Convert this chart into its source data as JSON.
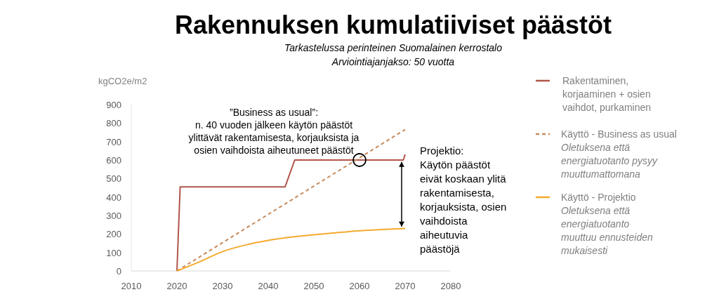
{
  "chart_data": {
    "type": "line",
    "title": "Rakennuksen kumulatiiviset päästöt",
    "subtitle": "Tarkastelussa perinteinen Suomalainen kerrostalo\nArviointiajanjakso: 50 vuotta",
    "ylabel": "kgCO2e/m2",
    "xlim": [
      2010,
      2080
    ],
    "xticks": [
      2010,
      2020,
      2030,
      2040,
      2050,
      2060,
      2070,
      2080
    ],
    "ylim": [
      0,
      900
    ],
    "yticks": [
      0,
      100,
      200,
      300,
      400,
      500,
      600,
      700,
      800,
      900
    ],
    "grid": false,
    "legend": "right",
    "marker": "none",
    "series": [
      {
        "name": "Rakentaminen, korjaaminen + osien vaihdot, purkaminen",
        "color": "#b0554a",
        "line_style": "solid",
        "x": [
          2020,
          2020.7,
          2043.7,
          2045.8,
          2069.6,
          2070
        ],
        "values": [
          0,
          455,
          455,
          600,
          600,
          630
        ]
      },
      {
        "name": "Käyttö - Business as usual",
        "color": "#c78a5c",
        "line_style": "dashed",
        "x": [
          2020,
          2070
        ],
        "values": [
          0,
          765
        ]
      },
      {
        "name": "Käyttö - Projektio",
        "color": "#f4aa2f",
        "line_style": "solid",
        "x": [
          2020,
          2025,
          2030,
          2035,
          2040,
          2045,
          2050,
          2055,
          2060,
          2065,
          2070
        ],
        "values": [
          0,
          50,
          105,
          140,
          165,
          183,
          196,
          207,
          217,
          224,
          230
        ]
      }
    ],
    "annotations": [
      "”Business as usual”:\nn. 40 vuoden jälkeen käytön päästöt\nylittävät rakentamisesta, korjauksista ja\nosien vaihdoista aiheutuneet päästöt",
      "Projektio:\nKäytön päästöt\neivät koskaan ylitä\nrakentamisesta,\nkorjauksista, osien\nvaihdoista\naiheutuvia\npäästöjä",
      "Oletuksena että\nenergiatuotanto pysyy\nmuuttumattomana",
      "Oletuksena että\nenergiatuotanto\nmuuttuu ennusteiden\nmukaisesti"
    ]
  }
}
